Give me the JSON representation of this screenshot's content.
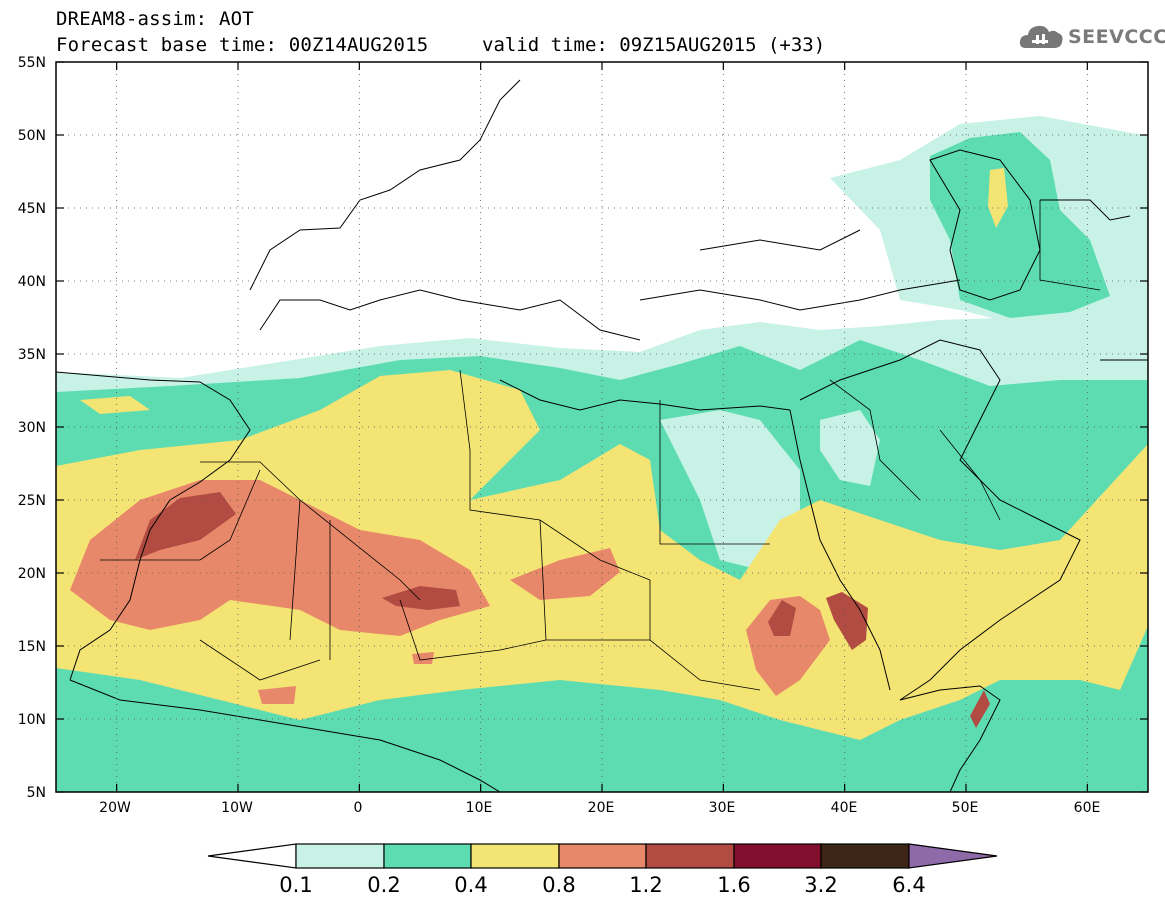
{
  "title": {
    "line1": "DREAM8-assim: AOT",
    "line2": "Forecast base time: 00Z14AUG2015",
    "valid": "valid time: 09Z15AUG2015 (+33)"
  },
  "logo": {
    "text": "SEEVCCC",
    "icon": "cloud-icon"
  },
  "map": {
    "lat_labels": [
      "55N",
      "50N",
      "45N",
      "40N",
      "35N",
      "30N",
      "25N",
      "20N",
      "15N",
      "10N",
      "5N"
    ],
    "lon_labels": [
      "20W",
      "10W",
      "0",
      "10E",
      "20E",
      "30E",
      "40E",
      "50E",
      "60E"
    ],
    "lat_range": [
      5,
      55
    ],
    "lon_range": [
      -25,
      65
    ],
    "variable": "AOT"
  },
  "colorbar": {
    "labels": [
      "0.1",
      "0.2",
      "0.4",
      "0.8",
      "1.2",
      "1.6",
      "3.2",
      "6.4"
    ],
    "colors": [
      "#ffffff",
      "#c8f2e6",
      "#5ddcb2",
      "#f4e474",
      "#e8886a",
      "#b24c42",
      "#840e2e",
      "#3d2616",
      "#8e6aa8"
    ]
  }
}
